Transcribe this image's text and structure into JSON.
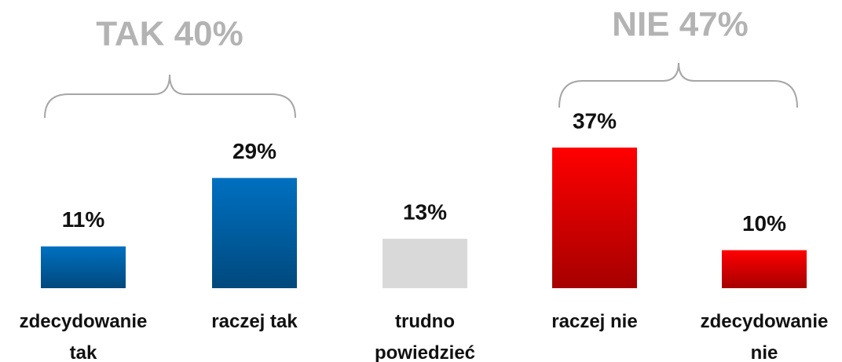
{
  "chart_data": {
    "type": "bar",
    "annotations": [
      "TAK 40%",
      "NIE 47%"
    ],
    "categories": [
      "zdecydowanie tak",
      "raczej tak",
      "trudno powiedzieć",
      "raczej nie",
      "zdecydowanie nie"
    ],
    "values": [
      11,
      29,
      13,
      37,
      10
    ],
    "value_labels": [
      "11%",
      "29%",
      "13%",
      "37%",
      "10%"
    ],
    "colors": [
      "#0070c0",
      "#0070c0",
      "#d9d9d9",
      "#ff0000",
      "#ff0000"
    ]
  }
}
